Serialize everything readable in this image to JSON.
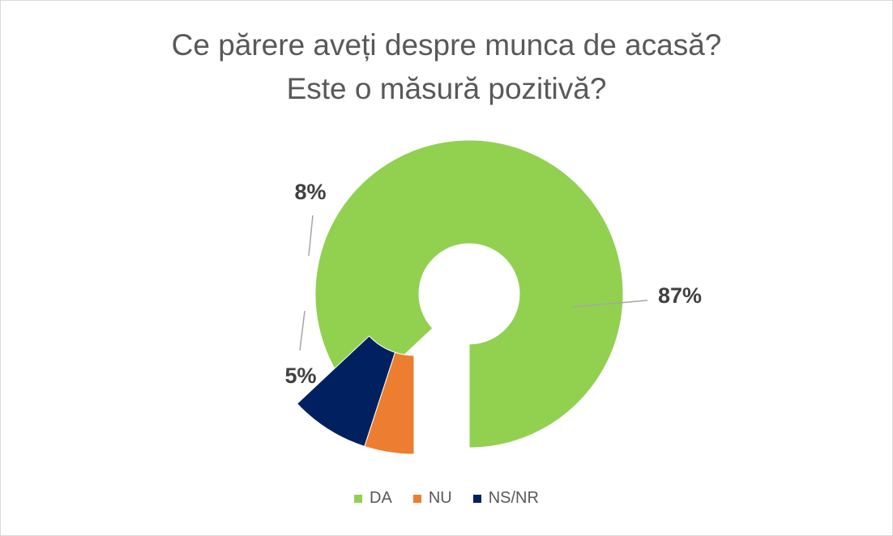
{
  "chart_data": {
    "type": "pie",
    "variant": "exploded-doughnut",
    "title_lines": [
      "Ce părere aveți despre munca de acasă?",
      "Este o măsură pozitivă?"
    ],
    "slices": [
      {
        "name": "DA",
        "value": 87,
        "label": "87%",
        "color": "#92d050"
      },
      {
        "name": "NU",
        "value": 5,
        "label": "5%",
        "color": "#ed7d31"
      },
      {
        "name": "NS/NR",
        "value": 8,
        "label": "8%",
        "color": "#002060"
      }
    ],
    "legend_position": "bottom"
  }
}
